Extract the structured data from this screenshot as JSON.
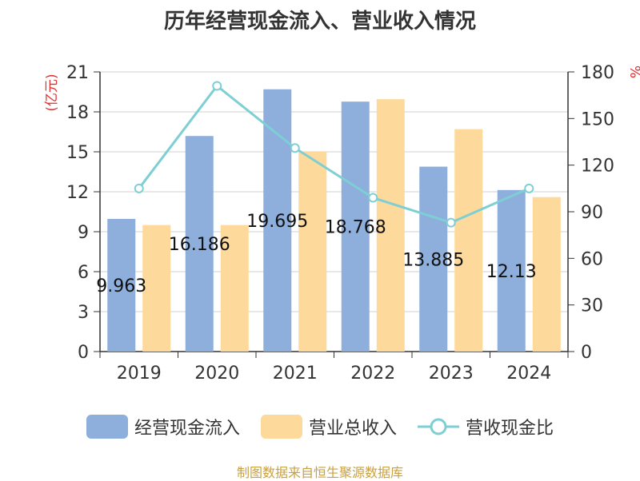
{
  "chart_data": {
    "type": "bar",
    "title": "历年经营现金流入、营业收入情况",
    "categories": [
      "2019",
      "2020",
      "2021",
      "2022",
      "2023",
      "2024"
    ],
    "series": [
      {
        "name": "经营现金流入",
        "type": "bar",
        "axis": "left",
        "color": "#8eaedb",
        "values": [
          9.963,
          16.186,
          19.695,
          18.768,
          13.885,
          12.13
        ]
      },
      {
        "name": "营业总收入",
        "type": "bar",
        "axis": "left",
        "color": "#fdd99b",
        "values": [
          9.5,
          9.5,
          15.0,
          18.95,
          16.7,
          11.6
        ]
      },
      {
        "name": "营收现金比",
        "type": "line",
        "axis": "right",
        "color": "#7ecfd4",
        "values": [
          105,
          171,
          131,
          99,
          83,
          105
        ]
      }
    ],
    "data_labels": [
      "9.963",
      "16.186",
      "19.695",
      "18.768",
      "13.885",
      "12.13"
    ],
    "left_axis": {
      "unit": "(亿元)",
      "ylim": [
        0,
        21
      ],
      "ticks": [
        "0",
        "3",
        "6",
        "9",
        "12",
        "15",
        "18",
        "21"
      ]
    },
    "right_axis": {
      "unit": "%",
      "ylim": [
        0,
        180
      ],
      "ticks": [
        "0",
        "30",
        "60",
        "90",
        "120",
        "150",
        "180"
      ]
    },
    "grid": true,
    "legend_position": "bottom"
  },
  "source": "制图数据来自恒生聚源数据库"
}
